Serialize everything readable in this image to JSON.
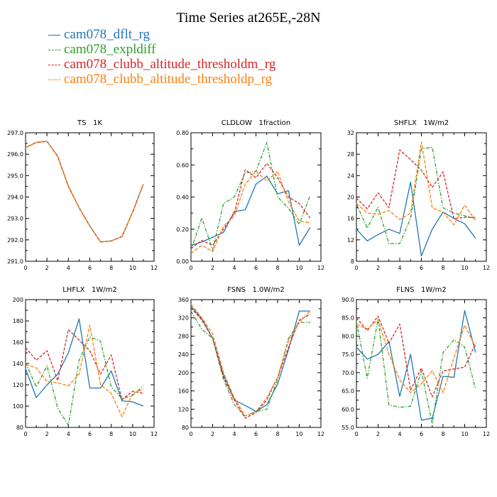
{
  "title": "Time Series at265E,-28N",
  "colors": {
    "dflt": "#1f77b4",
    "expldiff": "#2ca02c",
    "thresholdm": "#d62728",
    "thresholdp": "#ff7f0e"
  },
  "legend": [
    {
      "label": "cam078_dflt_rg",
      "color": "#1f77b4"
    },
    {
      "label": "cam078_expldiff",
      "color": "#2ca02c"
    },
    {
      "label": "cam078_clubb_altitude_thresholdm_rg",
      "color": "#d62728"
    },
    {
      "label": "cam078_clubb_altitude_thresholdp_rg",
      "color": "#ff7f0e"
    }
  ],
  "chart_data": [
    {
      "type": "line",
      "title": "TS   1K",
      "x": [
        0,
        1,
        2,
        3,
        4,
        5,
        6,
        7,
        8,
        9,
        10,
        11
      ],
      "xlim": [
        0,
        12
      ],
      "xticks": [
        0,
        2,
        4,
        6,
        8,
        10,
        12
      ],
      "ylim": [
        291.0,
        297.0
      ],
      "yticks": [
        "291.0",
        "292.0",
        "293.0",
        "294.0",
        "295.0",
        "296.0",
        "297.0"
      ],
      "series": [
        {
          "name": "cam078_dflt_rg",
          "values": [
            296.3,
            296.55,
            296.6,
            295.9,
            294.5,
            293.5,
            292.65,
            291.9,
            291.95,
            292.15,
            293.3,
            294.6
          ]
        },
        {
          "name": "cam078_expldiff",
          "values": [
            296.3,
            296.55,
            296.6,
            295.9,
            294.5,
            293.5,
            292.65,
            291.9,
            291.95,
            292.15,
            293.3,
            294.6
          ]
        },
        {
          "name": "cam078_clubb_altitude_thresholdm_rg",
          "values": [
            296.3,
            296.55,
            296.6,
            295.9,
            294.5,
            293.5,
            292.65,
            291.9,
            291.95,
            292.15,
            293.3,
            294.6
          ]
        },
        {
          "name": "cam078_clubb_altitude_thresholdp_rg",
          "values": [
            296.3,
            296.55,
            296.6,
            295.9,
            294.5,
            293.5,
            292.65,
            291.9,
            291.95,
            292.15,
            293.3,
            294.6
          ]
        }
      ]
    },
    {
      "type": "line",
      "title": "CLDLOW   1fraction",
      "x": [
        0,
        1,
        2,
        3,
        4,
        5,
        6,
        7,
        8,
        9,
        10,
        11
      ],
      "xlim": [
        0,
        12
      ],
      "xticks": [
        0,
        2,
        4,
        6,
        8,
        10,
        12
      ],
      "ylim": [
        0,
        0.8
      ],
      "yticks": [
        "0.00",
        "0.20",
        "0.40",
        "0.60",
        "0.80"
      ],
      "series": [
        {
          "name": "cam078_dflt_rg",
          "values": [
            0.1,
            0.12,
            0.15,
            0.18,
            0.31,
            0.32,
            0.48,
            0.53,
            0.42,
            0.44,
            0.1,
            0.21
          ]
        },
        {
          "name": "cam078_expldiff",
          "values": [
            0.07,
            0.27,
            0.07,
            0.36,
            0.4,
            0.55,
            0.56,
            0.74,
            0.4,
            0.33,
            0.23,
            0.41
          ]
        },
        {
          "name": "cam078_clubb_altitude_thresholdm_rg",
          "values": [
            0.08,
            0.13,
            0.1,
            0.2,
            0.3,
            0.57,
            0.52,
            0.61,
            0.52,
            0.4,
            0.36,
            0.27
          ]
        },
        {
          "name": "cam078_clubb_altitude_thresholdp_rg",
          "values": [
            0.05,
            0.1,
            0.06,
            0.22,
            0.28,
            0.48,
            0.56,
            0.5,
            0.56,
            0.37,
            0.25,
            0.24
          ]
        }
      ]
    },
    {
      "type": "line",
      "title": "SHFLX   1W/m2",
      "x": [
        0,
        1,
        2,
        3,
        4,
        5,
        6,
        7,
        8,
        9,
        10,
        11
      ],
      "xlim": [
        0,
        12
      ],
      "xticks": [
        0,
        2,
        4,
        6,
        8,
        10,
        12
      ],
      "ylim": [
        8,
        32
      ],
      "yticks": [
        "8",
        "12",
        "16",
        "20",
        "24",
        "28",
        "32"
      ],
      "series": [
        {
          "name": "cam078_dflt_rg",
          "values": [
            14,
            11.8,
            13,
            14,
            13.2,
            22.8,
            9,
            14,
            17.2,
            16,
            15,
            12.3
          ]
        },
        {
          "name": "cam078_expldiff",
          "values": [
            18.7,
            14.2,
            18.1,
            11.3,
            11.3,
            16,
            29,
            29.3,
            18,
            17,
            16.5,
            16
          ]
        },
        {
          "name": "cam078_clubb_altitude_thresholdm_rg",
          "values": [
            19.8,
            17.8,
            20.8,
            18,
            28.8,
            27,
            25,
            21.8,
            24.7,
            16,
            16.2,
            16.2
          ]
        },
        {
          "name": "cam078_clubb_altitude_thresholdp_rg",
          "values": [
            18.8,
            17,
            16.8,
            17.5,
            15.8,
            17,
            30.3,
            18,
            17.2,
            14.8,
            18.5,
            15.6
          ]
        }
      ]
    },
    {
      "type": "line",
      "title": "LHFLX   1W/m2",
      "x": [
        0,
        1,
        2,
        3,
        4,
        5,
        6,
        7,
        8,
        9,
        10,
        11
      ],
      "xlim": [
        0,
        12
      ],
      "xticks": [
        0,
        2,
        4,
        6,
        8,
        10,
        12
      ],
      "ylim": [
        80,
        200
      ],
      "yticks": [
        "80",
        "100",
        "120",
        "140",
        "160",
        "180",
        "200"
      ],
      "series": [
        {
          "name": "cam078_dflt_rg",
          "values": [
            135,
            108,
            120,
            130,
            150,
            182,
            117,
            117,
            133,
            105,
            104,
            100
          ]
        },
        {
          "name": "cam078_expldiff",
          "values": [
            141,
            118,
            138,
            98,
            82,
            143,
            165,
            161,
            118,
            107,
            110,
            119
          ]
        },
        {
          "name": "cam078_clubb_altitude_thresholdm_rg",
          "values": [
            155,
            143,
            152,
            124,
            172,
            162,
            152,
            130,
            148,
            106,
            114,
            112
          ]
        },
        {
          "name": "cam078_clubb_altitude_thresholdp_rg",
          "values": [
            139,
            136,
            123,
            122,
            119,
            130,
            176,
            120,
            112,
            90,
            112,
            116
          ]
        }
      ]
    },
    {
      "type": "line",
      "title": "FSNS   1.0W/m2",
      "x": [
        0,
        1,
        2,
        3,
        4,
        5,
        6,
        7,
        8,
        9,
        10,
        11
      ],
      "xlim": [
        0,
        12
      ],
      "xticks": [
        0,
        2,
        4,
        6,
        8,
        10,
        12
      ],
      "ylim": [
        80,
        360
      ],
      "yticks": [
        "80",
        "120",
        "160",
        "200",
        "240",
        "280",
        "320",
        "360"
      ],
      "series": [
        {
          "name": "cam078_dflt_rg",
          "values": [
            345,
            318,
            275,
            195,
            140,
            128,
            115,
            130,
            175,
            250,
            335,
            335
          ]
        },
        {
          "name": "cam078_expldiff",
          "values": [
            335,
            295,
            275,
            185,
            130,
            105,
            115,
            120,
            185,
            275,
            310,
            310
          ]
        },
        {
          "name": "cam078_clubb_altitude_thresholdm_rg",
          "values": [
            342,
            315,
            275,
            190,
            140,
            100,
            113,
            140,
            190,
            255,
            315,
            328
          ]
        },
        {
          "name": "cam078_clubb_altitude_thresholdp_rg",
          "values": [
            350,
            320,
            285,
            200,
            145,
            105,
            115,
            145,
            190,
            270,
            310,
            335
          ]
        }
      ]
    },
    {
      "type": "line",
      "title": "FLNS   1W/m2",
      "x": [
        0,
        1,
        2,
        3,
        4,
        5,
        6,
        7,
        8,
        9,
        10,
        11
      ],
      "xlim": [
        0,
        12
      ],
      "xticks": [
        0,
        2,
        4,
        6,
        8,
        10,
        12
      ],
      "ylim": [
        55,
        90
      ],
      "yticks": [
        "55.0",
        "60.0",
        "65.0",
        "70.0",
        "75.0",
        "80.0",
        "85.0",
        "90.0"
      ],
      "series": [
        {
          "name": "cam078_dflt_rg",
          "values": [
            77,
            73.7,
            75,
            78.5,
            63.5,
            75,
            57,
            57.5,
            69,
            68.7,
            87,
            75.5
          ]
        },
        {
          "name": "cam078_expldiff",
          "values": [
            84,
            68.5,
            84.7,
            61.2,
            60.5,
            60.8,
            70.5,
            56,
            75.5,
            79,
            77,
            65.5
          ]
        },
        {
          "name": "cam078_clubb_altitude_thresholdm_rg",
          "values": [
            85,
            81.5,
            85.5,
            78,
            83.3,
            65.2,
            71.3,
            63.3,
            70.5,
            71,
            71.5,
            78
          ]
        },
        {
          "name": "cam078_clubb_altitude_thresholdp_rg",
          "values": [
            83.2,
            82,
            84.5,
            75,
            68,
            64.5,
            67,
            70.5,
            64.5,
            74,
            83,
            77
          ]
        }
      ]
    }
  ]
}
